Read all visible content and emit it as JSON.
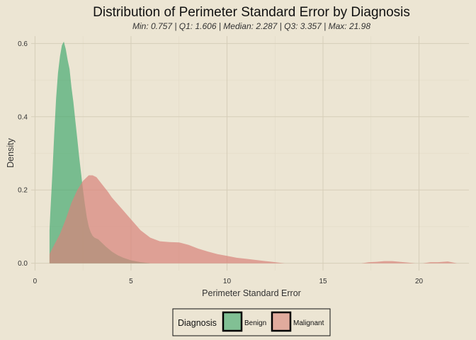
{
  "chart_data": {
    "type": "area",
    "title": "Distribution of Perimeter Standard Error by Diagnosis",
    "subtitle": "Min: 0.757 | Q1: 1.606 | Median: 2.287 | Q3: 3.357 | Max: 21.98",
    "xlabel": "Perimeter Standard Error",
    "ylabel": "Density",
    "xlim": [
      -0.2,
      22.6
    ],
    "ylim": [
      -0.02,
      0.62
    ],
    "x_ticks": [
      0,
      5,
      10,
      15,
      20
    ],
    "x_tick_labels": [
      "0",
      "5",
      "10",
      "15",
      "20"
    ],
    "y_ticks": [
      0,
      0.2,
      0.4,
      0.6
    ],
    "y_tick_labels": [
      "0.0",
      "0.2",
      "0.4",
      "0.6"
    ],
    "grid": true,
    "legend": {
      "title": "Diagnosis",
      "position": "bottom"
    },
    "series": [
      {
        "name": "Benign",
        "color": "#3aa66a",
        "fill_opacity": 0.65,
        "x": [
          0.757,
          0.8,
          0.9,
          1.0,
          1.1,
          1.2,
          1.3,
          1.4,
          1.5,
          1.6,
          1.7,
          1.8,
          1.9,
          2.0,
          2.1,
          2.2,
          2.3,
          2.4,
          2.5,
          2.6,
          2.7,
          2.8,
          2.9,
          3.0,
          3.1,
          3.3,
          3.5,
          3.7,
          4.0,
          4.3,
          4.6,
          5.0,
          5.5,
          6.0
        ],
        "y": [
          0.09,
          0.14,
          0.24,
          0.35,
          0.45,
          0.52,
          0.565,
          0.595,
          0.605,
          0.585,
          0.555,
          0.53,
          0.48,
          0.44,
          0.39,
          0.34,
          0.29,
          0.245,
          0.2,
          0.16,
          0.125,
          0.1,
          0.085,
          0.075,
          0.07,
          0.065,
          0.055,
          0.045,
          0.032,
          0.022,
          0.015,
          0.008,
          0.003,
          0.0
        ]
      },
      {
        "name": "Malignant",
        "color": "#d9837a",
        "fill_opacity": 0.7,
        "x": [
          0.757,
          1.0,
          1.3,
          1.6,
          1.9,
          2.2,
          2.5,
          2.8,
          3.0,
          3.2,
          3.5,
          3.8,
          4.0,
          4.5,
          5.0,
          5.5,
          6.0,
          6.5,
          7.0,
          7.5,
          8.0,
          8.5,
          9.0,
          9.5,
          10.0,
          10.5,
          11.0,
          11.5,
          12.0,
          12.5,
          13.0,
          14.0,
          15.0,
          16.0,
          17.0,
          17.4,
          17.8,
          18.2,
          18.6,
          19.0,
          19.4,
          19.8,
          20.2,
          20.6,
          21.0,
          21.5,
          21.98
        ],
        "y": [
          0.025,
          0.05,
          0.08,
          0.12,
          0.165,
          0.2,
          0.225,
          0.24,
          0.24,
          0.235,
          0.215,
          0.195,
          0.18,
          0.15,
          0.12,
          0.09,
          0.07,
          0.06,
          0.058,
          0.057,
          0.05,
          0.04,
          0.032,
          0.025,
          0.02,
          0.015,
          0.012,
          0.009,
          0.006,
          0.003,
          0.0,
          0.0,
          0.0,
          0.0,
          0.0,
          0.003,
          0.004,
          0.006,
          0.006,
          0.004,
          0.002,
          0.0,
          0.0,
          0.003,
          0.003,
          0.005,
          0.0
        ]
      }
    ]
  }
}
